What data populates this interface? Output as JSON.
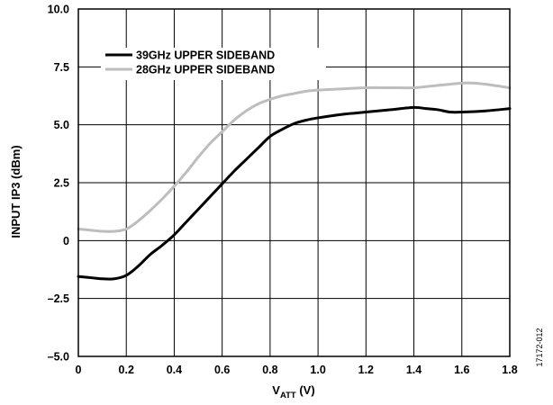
{
  "chart_data": {
    "type": "line",
    "xlabel": {
      "main": "V",
      "sub": "ATT",
      "unit": " (V)"
    },
    "ylabel": "INPUT IP3 (dBm)",
    "xlim": [
      0,
      1.8
    ],
    "ylim": [
      -5.0,
      10.0
    ],
    "x_ticks": [
      0,
      0.2,
      0.4,
      0.6,
      0.8,
      1.0,
      1.2,
      1.4,
      1.6,
      1.8
    ],
    "x_tick_labels": [
      "0",
      "0.2",
      "0.4",
      "0.6",
      "0.8",
      "1.0",
      "1.2",
      "1.4",
      "1.6",
      "1.8"
    ],
    "y_ticks": [
      -5.0,
      -2.5,
      0,
      2.5,
      5.0,
      7.5,
      10.0
    ],
    "y_tick_labels": [
      "–5.0",
      "–2.5",
      "0",
      "2.5",
      "5.0",
      "7.5",
      "10.0"
    ],
    "grid": true,
    "legend_position": "top-left",
    "series": [
      {
        "name": "39GHz UPPER SIDEBAND",
        "color": "#000000",
        "x": [
          0,
          0.05,
          0.1,
          0.15,
          0.2,
          0.25,
          0.3,
          0.35,
          0.4,
          0.45,
          0.5,
          0.55,
          0.6,
          0.65,
          0.7,
          0.75,
          0.8,
          0.85,
          0.9,
          0.95,
          1.0,
          1.1,
          1.2,
          1.3,
          1.4,
          1.45,
          1.5,
          1.55,
          1.6,
          1.7,
          1.8
        ],
        "y": [
          -1.55,
          -1.6,
          -1.65,
          -1.65,
          -1.5,
          -1.1,
          -0.6,
          -0.2,
          0.25,
          0.8,
          1.35,
          1.9,
          2.45,
          3.0,
          3.5,
          4.0,
          4.5,
          4.8,
          5.05,
          5.2,
          5.3,
          5.45,
          5.55,
          5.65,
          5.75,
          5.7,
          5.65,
          5.55,
          5.55,
          5.6,
          5.7
        ]
      },
      {
        "name": "28GHz UPPER SIDEBAND",
        "color": "#bdbdbd",
        "x": [
          0,
          0.05,
          0.1,
          0.15,
          0.2,
          0.25,
          0.3,
          0.35,
          0.4,
          0.45,
          0.5,
          0.55,
          0.6,
          0.65,
          0.7,
          0.75,
          0.8,
          0.85,
          0.9,
          0.95,
          1.0,
          1.1,
          1.2,
          1.3,
          1.4,
          1.45,
          1.5,
          1.55,
          1.6,
          1.65,
          1.7,
          1.8
        ],
        "y": [
          0.5,
          0.45,
          0.4,
          0.4,
          0.5,
          0.85,
          1.3,
          1.8,
          2.35,
          2.95,
          3.6,
          4.2,
          4.7,
          5.2,
          5.6,
          5.9,
          6.1,
          6.25,
          6.35,
          6.45,
          6.5,
          6.55,
          6.6,
          6.6,
          6.6,
          6.65,
          6.7,
          6.75,
          6.8,
          6.8,
          6.75,
          6.6
        ]
      }
    ]
  },
  "figure_id": "17172-012"
}
